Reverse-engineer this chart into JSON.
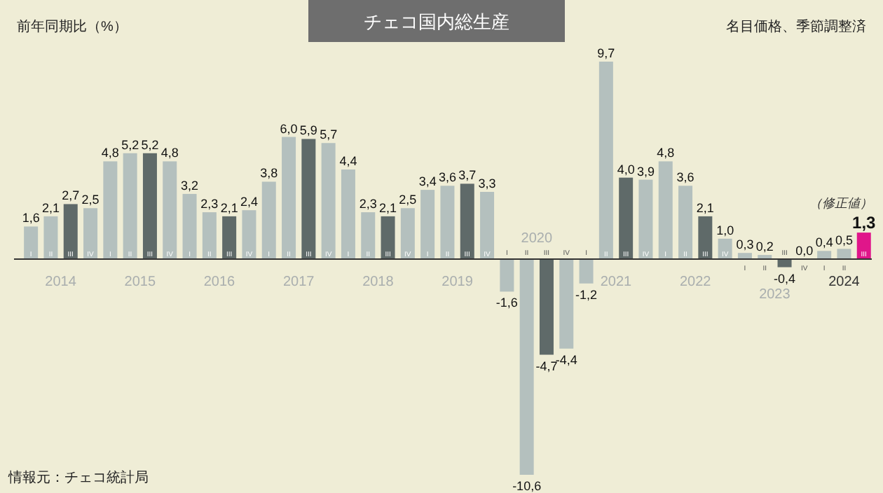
{
  "chart_data": {
    "type": "bar",
    "title": "チェコ国内総生産",
    "subtitle": "名目価格、季節調整済",
    "ylabel": "前年同期比（%）",
    "categories": [
      "I",
      "II",
      "III",
      "IV",
      "I",
      "II",
      "III",
      "IV",
      "I",
      "II",
      "III",
      "IV",
      "I",
      "II",
      "III",
      "IV",
      "I",
      "II",
      "III",
      "IV",
      "I",
      "II",
      "III",
      "IV",
      "I",
      "II",
      "III",
      "IV",
      "I",
      "II",
      "III",
      "IV",
      "I",
      "II",
      "III",
      "IV",
      "I",
      "II",
      "III",
      "IV",
      "I",
      "II",
      "III"
    ],
    "values": [
      1.6,
      2.1,
      2.7,
      2.5,
      4.8,
      5.2,
      5.2,
      4.8,
      3.2,
      2.3,
      2.1,
      2.4,
      3.8,
      6.0,
      5.9,
      5.7,
      4.4,
      2.3,
      2.1,
      2.5,
      3.4,
      3.6,
      3.7,
      3.3,
      -1.6,
      -10.6,
      -4.7,
      -4.4,
      -1.2,
      9.7,
      4.0,
      3.9,
      4.8,
      3.6,
      2.1,
      1.0,
      0.3,
      0.2,
      -0.4,
      0.0,
      0.4,
      0.5,
      1.3
    ],
    "value_labels": [
      "1,6",
      "2,1",
      "2,7",
      "2,5",
      "4,8",
      "5,2",
      "5,2",
      "4,8",
      "3,2",
      "2,3",
      "2,1",
      "2,4",
      "3,8",
      "6,0",
      "5,9",
      "5,7",
      "4,4",
      "2,3",
      "2,1",
      "2,5",
      "3,4",
      "3,6",
      "3,7",
      "3,3",
      "-1,6",
      "-10,6",
      "-4,7",
      "-4,4",
      "-1,2",
      "9,7",
      "4,0",
      "3,9",
      "4,8",
      "3,6",
      "2,1",
      "1,0",
      "0,3",
      "0,2",
      "-0,4",
      "0,0",
      "0,4",
      "0,5",
      "1,3"
    ],
    "colors": [
      "#b4c0be",
      "#b4c0be",
      "#5f6a69",
      "#b4c0be",
      "#b4c0be",
      "#b4c0be",
      "#5f6a69",
      "#b4c0be",
      "#b4c0be",
      "#b4c0be",
      "#5f6a69",
      "#b4c0be",
      "#b4c0be",
      "#b4c0be",
      "#5f6a69",
      "#b4c0be",
      "#b4c0be",
      "#b4c0be",
      "#5f6a69",
      "#b4c0be",
      "#b4c0be",
      "#b4c0be",
      "#5f6a69",
      "#b4c0be",
      "#b4c0be",
      "#b4c0be",
      "#5f6a69",
      "#b4c0be",
      "#b4c0be",
      "#b4c0be",
      "#5f6a69",
      "#b4c0be",
      "#b4c0be",
      "#b4c0be",
      "#5f6a69",
      "#b4c0be",
      "#b4c0be",
      "#b4c0be",
      "#5f6a69",
      "#b4c0be",
      "#b4c0be",
      "#b4c0be",
      "#e0168a"
    ],
    "annotations": [
      "（修正値）",
      "2014",
      "2015",
      "2016",
      "2017",
      "2018",
      "2019",
      "2020",
      "2021",
      "2022",
      "2023",
      "2024",
      "情報元：チェコ統計局"
    ]
  }
}
